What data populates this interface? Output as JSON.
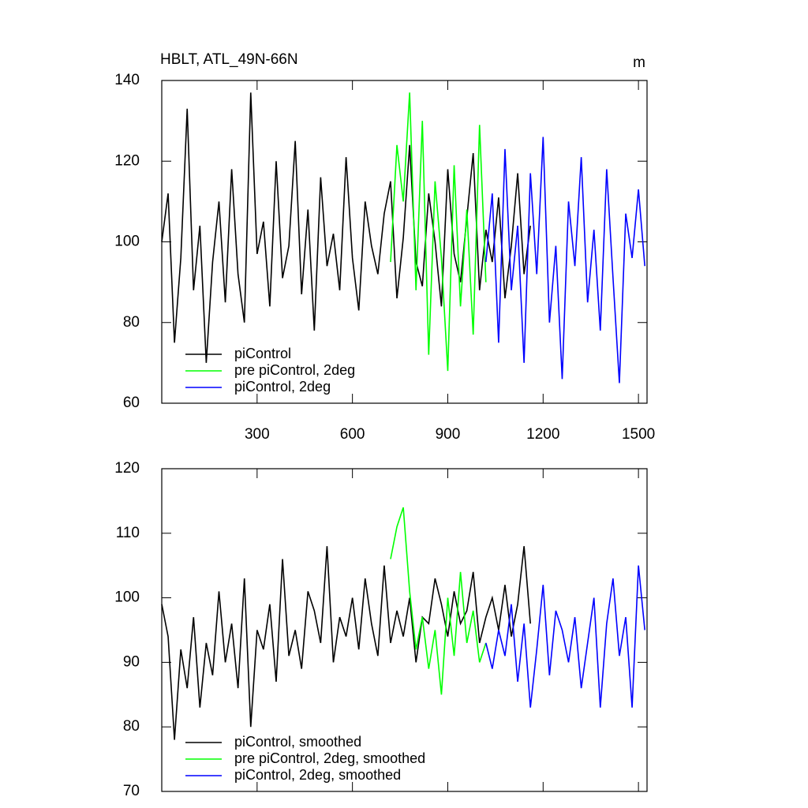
{
  "chart_data": [
    {
      "type": "line",
      "title": "HBLT, ATL_49N-66N",
      "unit_label": "m",
      "xlim": [
        0,
        1527
      ],
      "ylim": [
        60,
        140
      ],
      "xticks": [
        300,
        600,
        900,
        1200,
        1500
      ],
      "yticks": [
        60,
        80,
        100,
        120,
        140
      ],
      "show_xtick_labels": true,
      "legend": "lower-left",
      "series": [
        {
          "name": "piControl",
          "color": "#000000",
          "x": [
            0,
            20,
            40,
            60,
            80,
            100,
            120,
            140,
            160,
            180,
            200,
            220,
            240,
            260,
            280,
            300,
            320,
            340,
            360,
            380,
            400,
            420,
            440,
            460,
            480,
            500,
            520,
            540,
            560,
            580,
            600,
            620,
            640,
            660,
            680,
            700,
            720,
            740,
            760,
            780,
            800,
            820,
            840,
            860,
            880,
            900,
            920,
            940,
            960,
            980,
            1000,
            1020,
            1040,
            1060,
            1080,
            1100,
            1120,
            1140,
            1160
          ],
          "values": [
            100,
            112,
            75,
            96,
            133,
            88,
            104,
            70,
            95,
            110,
            85,
            118,
            92,
            80,
            137,
            97,
            105,
            84,
            120,
            91,
            99,
            125,
            87,
            108,
            78,
            116,
            94,
            102,
            88,
            121,
            96,
            83,
            110,
            99,
            92,
            107,
            115,
            86,
            101,
            124,
            95,
            89,
            112,
            100,
            84,
            118,
            97,
            90,
            106,
            122,
            88,
            103,
            95,
            111,
            86,
            99,
            117,
            92,
            104
          ]
        },
        {
          "name": "pre piControl, 2deg",
          "color": "#00ff00",
          "x": [
            720,
            740,
            760,
            780,
            800,
            820,
            840,
            860,
            880,
            900,
            920,
            940,
            960,
            980,
            1000,
            1020
          ],
          "values": [
            95,
            124,
            110,
            137,
            88,
            130,
            72,
            115,
            96,
            68,
            119,
            84,
            108,
            77,
            129,
            90
          ]
        },
        {
          "name": "piControl, 2deg",
          "color": "#0000ff",
          "x": [
            1020,
            1040,
            1060,
            1080,
            1100,
            1120,
            1140,
            1160,
            1180,
            1200,
            1220,
            1240,
            1260,
            1280,
            1300,
            1320,
            1340,
            1360,
            1380,
            1400,
            1420,
            1440,
            1460,
            1480,
            1500,
            1520
          ],
          "values": [
            95,
            112,
            75,
            123,
            88,
            104,
            70,
            117,
            92,
            126,
            80,
            99,
            66,
            110,
            94,
            121,
            85,
            103,
            78,
            118,
            91,
            65,
            107,
            96,
            113,
            94
          ]
        }
      ]
    },
    {
      "type": "line",
      "xlim": [
        0,
        1527
      ],
      "ylim": [
        70,
        120
      ],
      "xticks": [
        300,
        600,
        900,
        1200,
        1500
      ],
      "yticks": [
        70,
        80,
        90,
        100,
        110,
        120
      ],
      "show_xtick_labels": false,
      "legend": "lower-left",
      "series": [
        {
          "name": "piControl, smoothed",
          "color": "#000000",
          "x": [
            0,
            20,
            40,
            60,
            80,
            100,
            120,
            140,
            160,
            180,
            200,
            220,
            240,
            260,
            280,
            300,
            320,
            340,
            360,
            380,
            400,
            420,
            440,
            460,
            480,
            500,
            520,
            540,
            560,
            580,
            600,
            620,
            640,
            660,
            680,
            700,
            720,
            740,
            760,
            780,
            800,
            820,
            840,
            860,
            880,
            900,
            920,
            940,
            960,
            980,
            1000,
            1020,
            1040,
            1060,
            1080,
            1100,
            1120,
            1140,
            1160
          ],
          "values": [
            99,
            94,
            78,
            92,
            86,
            97,
            83,
            93,
            88,
            101,
            90,
            96,
            86,
            103,
            80,
            95,
            92,
            99,
            87,
            106,
            91,
            95,
            89,
            101,
            98,
            93,
            108,
            90,
            97,
            94,
            100,
            92,
            103,
            96,
            91,
            105,
            93,
            98,
            94,
            100,
            90,
            97,
            96,
            103,
            99,
            94,
            101,
            96,
            98,
            104,
            93,
            97,
            100,
            95,
            102,
            94,
            99,
            108,
            96
          ]
        },
        {
          "name": "pre piControl, 2deg, smoothed",
          "color": "#00ff00",
          "x": [
            720,
            740,
            760,
            780,
            800,
            820,
            840,
            860,
            880,
            900,
            920,
            940,
            960,
            980,
            1000,
            1020
          ],
          "values": [
            106,
            111,
            114,
            101,
            92,
            97,
            89,
            95,
            85,
            100,
            91,
            104,
            93,
            98,
            90,
            93
          ]
        },
        {
          "name": "piControl, 2deg, smoothed",
          "color": "#0000ff",
          "x": [
            1020,
            1040,
            1060,
            1080,
            1100,
            1120,
            1140,
            1160,
            1180,
            1200,
            1220,
            1240,
            1260,
            1280,
            1300,
            1320,
            1340,
            1360,
            1380,
            1400,
            1420,
            1440,
            1460,
            1480,
            1500,
            1520
          ],
          "values": [
            93,
            89,
            95,
            91,
            99,
            87,
            96,
            83,
            92,
            102,
            88,
            98,
            95,
            90,
            97,
            86,
            93,
            100,
            83,
            96,
            103,
            91,
            97,
            83,
            105,
            95
          ]
        }
      ]
    }
  ]
}
